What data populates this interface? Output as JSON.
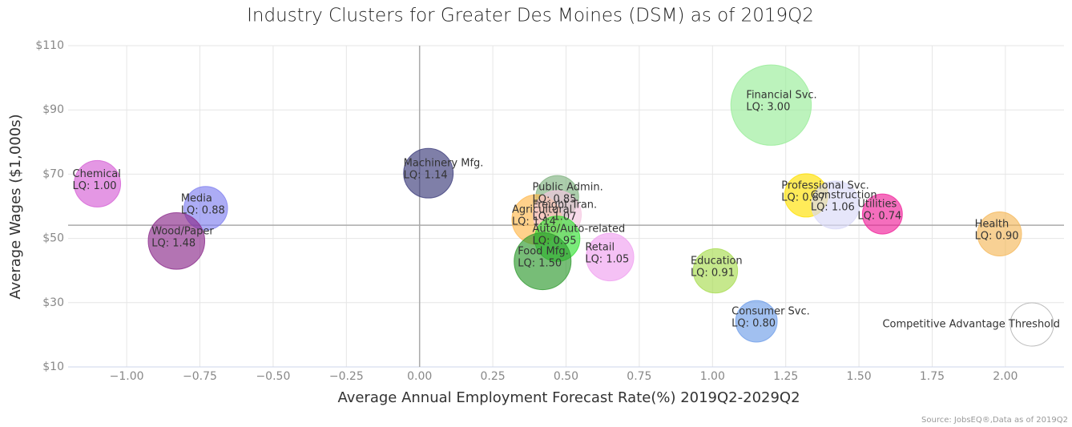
{
  "chart_data": {
    "type": "bubble",
    "title": "Industry Clusters for Greater Des Moines (DSM) as of 2019Q2",
    "xlabel": "Average Annual Employment Forecast Rate(%) 2019Q2-2029Q2",
    "ylabel": "Average Wages ($1,000s)",
    "source": "Source: JobsEQ®,Data as of 2019Q2",
    "annotation": "Competitive Advantage Threshold",
    "labels": [
      "Chemical",
      "Media",
      "Wood/Paper",
      "Machinery Mfg.",
      "Public Admin.",
      "Agricultural",
      "Freight Tran.",
      "Auto/Auto-related",
      "Food Mfg.",
      "Retail",
      "Education",
      "Consumer Svc.",
      "Financial Svc.",
      "Professional Svc.",
      "Construction",
      "Utilities",
      "Health"
    ],
    "x": [
      -1.1,
      -0.73,
      -0.83,
      0.03,
      0.47,
      0.4,
      0.47,
      0.47,
      0.42,
      0.65,
      1.01,
      1.15,
      1.2,
      1.32,
      1.42,
      1.58,
      1.98
    ],
    "y": [
      67,
      59.4,
      49.2,
      70.3,
      62.9,
      55.9,
      57.4,
      49.9,
      42.9,
      44.2,
      39.9,
      24.2,
      91.5,
      63.4,
      60.4,
      57.6,
      51.4
    ],
    "size": [
      1.0,
      0.88,
      1.48,
      1.14,
      0.85,
      1.14,
      1.07,
      0.95,
      1.5,
      1.05,
      0.91,
      0.8,
      3.0,
      0.87,
      1.06,
      0.74,
      0.9
    ],
    "value_labels": [
      "LQ: 1.00",
      "LQ: 0.88",
      "LQ: 1.48",
      "LQ: 1.14",
      "LQ: 0.85",
      "LQ: 1.14",
      "LQ: 1.07",
      "LQ: 0.95",
      "LQ: 1.50",
      "LQ: 1.05",
      "LQ: 0.91",
      "LQ: 0.80",
      "LQ: 3.00",
      "LQ: 0.87",
      "LQ: 1.06",
      "LQ: 0.74",
      "LQ: 0.90"
    ],
    "colors": [
      "#d55fd5",
      "#8080f0",
      "#8b2a8b",
      "#3b3b7a",
      "#7fb27f",
      "#ffb84d",
      "#f5c6e0",
      "#33e033",
      "#2e9a2e",
      "#f0a0f0",
      "#a8dc50",
      "#6f9ee8",
      "#98ec98",
      "#ffe000",
      "#d8d8f8",
      "#f0209a",
      "#f5b85a"
    ],
    "reference_x": 0,
    "reference_y": 54.1,
    "xlim": [
      -1.2,
      2.2
    ],
    "ylim": [
      10,
      110
    ],
    "xticks": [
      {
        "value": -1,
        "label": "−1.00"
      },
      {
        "value": -0.75,
        "label": "−0.75"
      },
      {
        "value": -0.5,
        "label": "−0.50"
      },
      {
        "value": -0.25,
        "label": "−0.25"
      },
      {
        "value": 0,
        "label": "0.00"
      },
      {
        "value": 0.25,
        "label": "0.25"
      },
      {
        "value": 0.5,
        "label": "0.50"
      },
      {
        "value": 0.75,
        "label": "0.75"
      },
      {
        "value": 1,
        "label": "1.00"
      },
      {
        "value": 1.25,
        "label": "1.25"
      },
      {
        "value": 1.5,
        "label": "1.50"
      },
      {
        "value": 1.75,
        "label": "1.75"
      },
      {
        "value": 2,
        "label": "2.00"
      }
    ],
    "yticks": [
      {
        "value": 10,
        "label": "$10"
      },
      {
        "value": 30,
        "label": "$30"
      },
      {
        "value": 50,
        "label": "$50"
      },
      {
        "value": 70,
        "label": "$70"
      },
      {
        "value": 90,
        "label": "$90"
      },
      {
        "value": 110,
        "label": "$110"
      }
    ],
    "grid": true
  }
}
